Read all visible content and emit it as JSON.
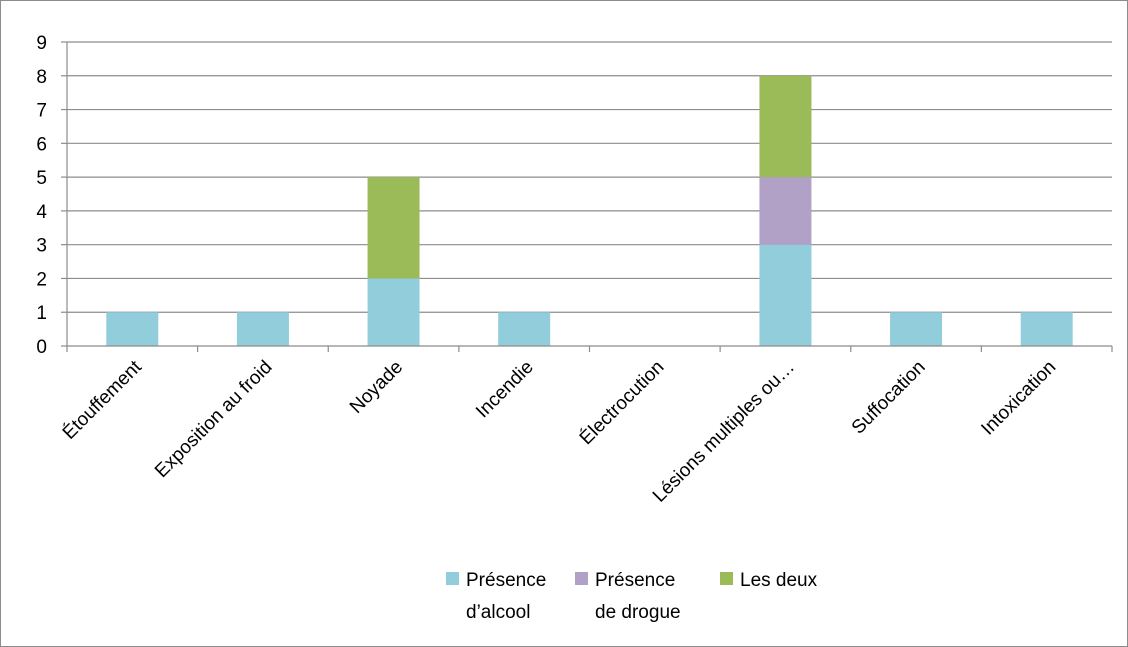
{
  "chart_data": {
    "type": "bar",
    "stacked": true,
    "categories": [
      "Étouffement",
      "Exposition au froid",
      "Noyade",
      "Incendie",
      "Électrocution",
      "Lésions multiples ou…",
      "Suffocation",
      "Intoxication"
    ],
    "series": [
      {
        "name": "Présence d’alcool",
        "name_lines": [
          "Présence",
          "d’alcool"
        ],
        "color": "#92CDDC",
        "values": [
          1,
          1,
          2,
          1,
          0,
          3,
          1,
          1
        ]
      },
      {
        "name": "Présence de drogue",
        "name_lines": [
          "Présence",
          "de drogue"
        ],
        "color": "#B2A1C7",
        "values": [
          0,
          0,
          0,
          0,
          0,
          2,
          0,
          0
        ]
      },
      {
        "name": "Les deux",
        "name_lines": [
          "Les deux"
        ],
        "color": "#9BBB59",
        "values": [
          0,
          0,
          3,
          0,
          0,
          3,
          0,
          0
        ]
      }
    ],
    "ylim": [
      0,
      9
    ],
    "yticks": [
      0,
      1,
      2,
      3,
      4,
      5,
      6,
      7,
      8,
      9
    ],
    "grid": true,
    "legend_position": "bottom",
    "title": "",
    "xlabel": "",
    "ylabel": ""
  }
}
